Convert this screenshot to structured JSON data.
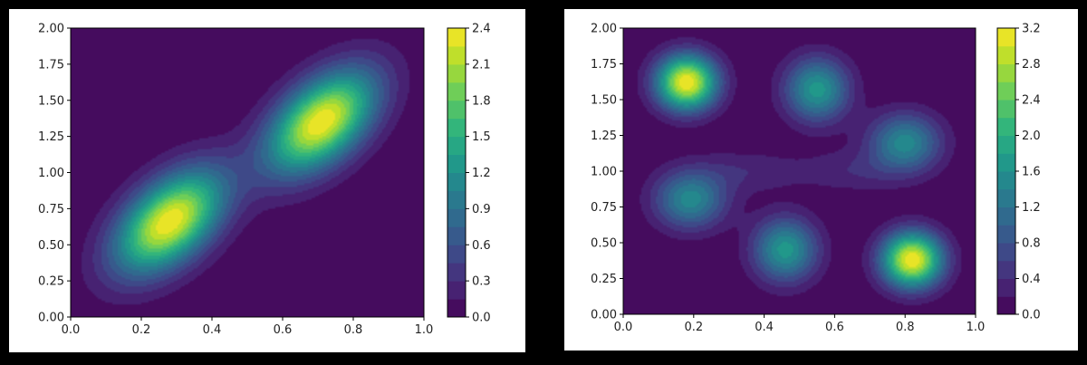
{
  "chart_data": [
    {
      "type": "heatmap",
      "subtype": "filled-contour",
      "title": "",
      "xlabel": "",
      "ylabel": "",
      "xlim": [
        0.0,
        1.0
      ],
      "ylim": [
        0.0,
        2.0
      ],
      "x_ticks": [
        "0.0",
        "0.2",
        "0.4",
        "0.6",
        "0.8",
        "1.0"
      ],
      "y_ticks": [
        "0.00",
        "0.25",
        "0.50",
        "0.75",
        "1.00",
        "1.25",
        "1.50",
        "1.75",
        "2.00"
      ],
      "colorbar": {
        "min": 0.0,
        "max": 2.4,
        "levels": 16,
        "ticks": [
          "0.0",
          "0.3",
          "0.6",
          "0.9",
          "1.2",
          "1.5",
          "1.8",
          "2.1",
          "2.4"
        ]
      },
      "peaks": [
        {
          "x": 0.28,
          "y": 0.65,
          "value": 2.4
        },
        {
          "x": 0.71,
          "y": 1.35,
          "value": 2.4
        }
      ],
      "grid": false
    },
    {
      "type": "heatmap",
      "subtype": "filled-contour",
      "title": "",
      "xlabel": "",
      "ylabel": "",
      "xlim": [
        0.0,
        1.0
      ],
      "ylim": [
        0.0,
        2.0
      ],
      "x_ticks": [
        "0.0",
        "0.2",
        "0.4",
        "0.6",
        "0.8",
        "1.0"
      ],
      "y_ticks": [
        "0.00",
        "0.25",
        "0.50",
        "0.75",
        "1.00",
        "1.25",
        "1.50",
        "1.75",
        "2.00"
      ],
      "colorbar": {
        "min": 0.0,
        "max": 3.2,
        "levels": 16,
        "ticks": [
          "0.0",
          "0.4",
          "0.8",
          "1.2",
          "1.6",
          "2.0",
          "2.4",
          "2.8",
          "3.2"
        ]
      },
      "peaks": [
        {
          "x": 0.18,
          "y": 1.62,
          "value": 3.2
        },
        {
          "x": 0.82,
          "y": 0.38,
          "value": 3.2
        },
        {
          "x": 0.55,
          "y": 1.57,
          "value": 1.7
        },
        {
          "x": 0.46,
          "y": 0.45,
          "value": 1.7
        },
        {
          "x": 0.8,
          "y": 1.2,
          "value": 1.5
        },
        {
          "x": 0.19,
          "y": 0.8,
          "value": 1.5
        }
      ],
      "grid": false
    }
  ]
}
